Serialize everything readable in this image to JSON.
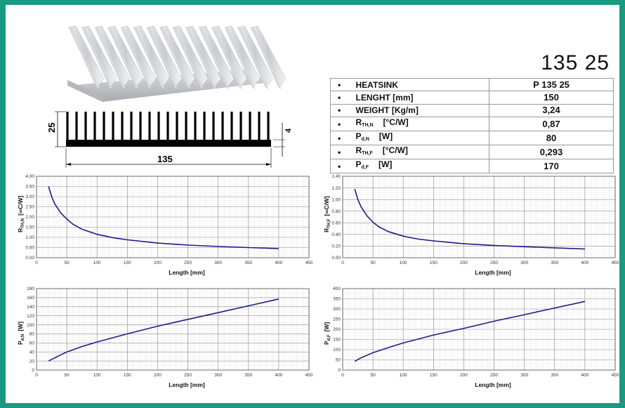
{
  "model": "135 25",
  "profile": {
    "height_label": "25",
    "width_label": "135",
    "base_label": "4"
  },
  "spec_table": {
    "rows": [
      {
        "bullet": "•",
        "label": "HEATSINK",
        "sub": "",
        "unit": "",
        "value": "P 135 25"
      },
      {
        "bullet": "•",
        "label": "LENGHT [mm]",
        "sub": "",
        "unit": "",
        "value": "150"
      },
      {
        "bullet": "•",
        "label": "WEIGHT [Kg/m]",
        "sub": "",
        "unit": "",
        "value": "3,24"
      },
      {
        "bullet": "•",
        "label": "R",
        "sub": "TH,N",
        "unit": "[°C/W]",
        "value": "0,87"
      },
      {
        "bullet": "•",
        "label": "P",
        "sub": "d,N",
        "unit": "[W]",
        "value": "80"
      },
      {
        "bullet": "•",
        "label": "R",
        "sub": "TH,F",
        "unit": "[°C/W]",
        "value": "0,293"
      },
      {
        "bullet": "•",
        "label": "P",
        "sub": "d,F",
        "unit": "[W]",
        "value": "170"
      }
    ]
  },
  "colors": {
    "curve": "#1c1c8c",
    "frame": "#1a9a82"
  },
  "chart_data": [
    {
      "id": "rthn",
      "type": "line",
      "xlabel": "Length [mm]",
      "ylabel": "R",
      "ylabel_sub": "TH,N",
      "ylabel_unit": "[∞C/W]",
      "xlim": [
        0,
        450
      ],
      "ylim": [
        0,
        4
      ],
      "xticks": [
        "0",
        "50",
        "100",
        "150",
        "200",
        "250",
        "300",
        "350",
        "400",
        "450"
      ],
      "yticks": [
        "0.00",
        "0.50",
        "1.00",
        "1.50",
        "2.00",
        "2.50",
        "3.00",
        "3.50",
        "4.00"
      ],
      "grid": true,
      "x": [
        20,
        25,
        30,
        40,
        50,
        60,
        75,
        100,
        125,
        150,
        200,
        250,
        300,
        350,
        400
      ],
      "y": [
        3.5,
        3.0,
        2.65,
        2.2,
        1.9,
        1.65,
        1.4,
        1.15,
        0.99,
        0.88,
        0.72,
        0.62,
        0.55,
        0.5,
        0.45
      ]
    },
    {
      "id": "rthf",
      "type": "line",
      "xlabel": "Length [mm]",
      "ylabel": "R",
      "ylabel_sub": "TH,F",
      "ylabel_unit": "[∞C/W]",
      "xlim": [
        0,
        450
      ],
      "ylim": [
        0,
        1.4
      ],
      "xticks": [
        "0",
        "50",
        "100",
        "150",
        "200",
        "250",
        "300",
        "350",
        "400",
        "450"
      ],
      "yticks": [
        "0.00",
        "0.20",
        "0.40",
        "0.60",
        "0.80",
        "1.00",
        "1.20",
        "1.40"
      ],
      "grid": true,
      "x": [
        20,
        25,
        30,
        40,
        50,
        60,
        75,
        100,
        125,
        150,
        200,
        250,
        300,
        350,
        400
      ],
      "y": [
        1.18,
        1.0,
        0.88,
        0.72,
        0.61,
        0.53,
        0.45,
        0.37,
        0.32,
        0.29,
        0.24,
        0.21,
        0.19,
        0.17,
        0.15
      ]
    },
    {
      "id": "pdn",
      "type": "line",
      "xlabel": "Length [mm]",
      "ylabel": "P",
      "ylabel_sub": "d,N",
      "ylabel_unit": "[W]",
      "xlim": [
        0,
        450
      ],
      "ylim": [
        0,
        180
      ],
      "xticks": [
        "0",
        "50",
        "100",
        "150",
        "200",
        "250",
        "300",
        "350",
        "400",
        "450"
      ],
      "yticks": [
        "0",
        "20",
        "40",
        "60",
        "80",
        "100",
        "120",
        "140",
        "160",
        "180"
      ],
      "grid": true,
      "x": [
        20,
        30,
        50,
        75,
        100,
        150,
        200,
        250,
        300,
        350,
        400
      ],
      "y": [
        20,
        27,
        40,
        52,
        62,
        80,
        97,
        112,
        127,
        142,
        157
      ]
    },
    {
      "id": "pdf",
      "type": "line",
      "xlabel": "Length [mm]",
      "ylabel": "P",
      "ylabel_sub": "d,F",
      "ylabel_unit": "[W]",
      "xlim": [
        0,
        450
      ],
      "ylim": [
        0,
        400
      ],
      "xticks": [
        "0",
        "50",
        "100",
        "150",
        "200",
        "250",
        "300",
        "350",
        "400",
        "450"
      ],
      "yticks": [
        "0",
        "50",
        "100",
        "150",
        "200",
        "250",
        "300",
        "350",
        "400"
      ],
      "grid": true,
      "x": [
        20,
        30,
        50,
        75,
        100,
        150,
        200,
        250,
        300,
        350,
        400
      ],
      "y": [
        43,
        60,
        85,
        110,
        133,
        172,
        205,
        240,
        272,
        305,
        337
      ]
    }
  ]
}
